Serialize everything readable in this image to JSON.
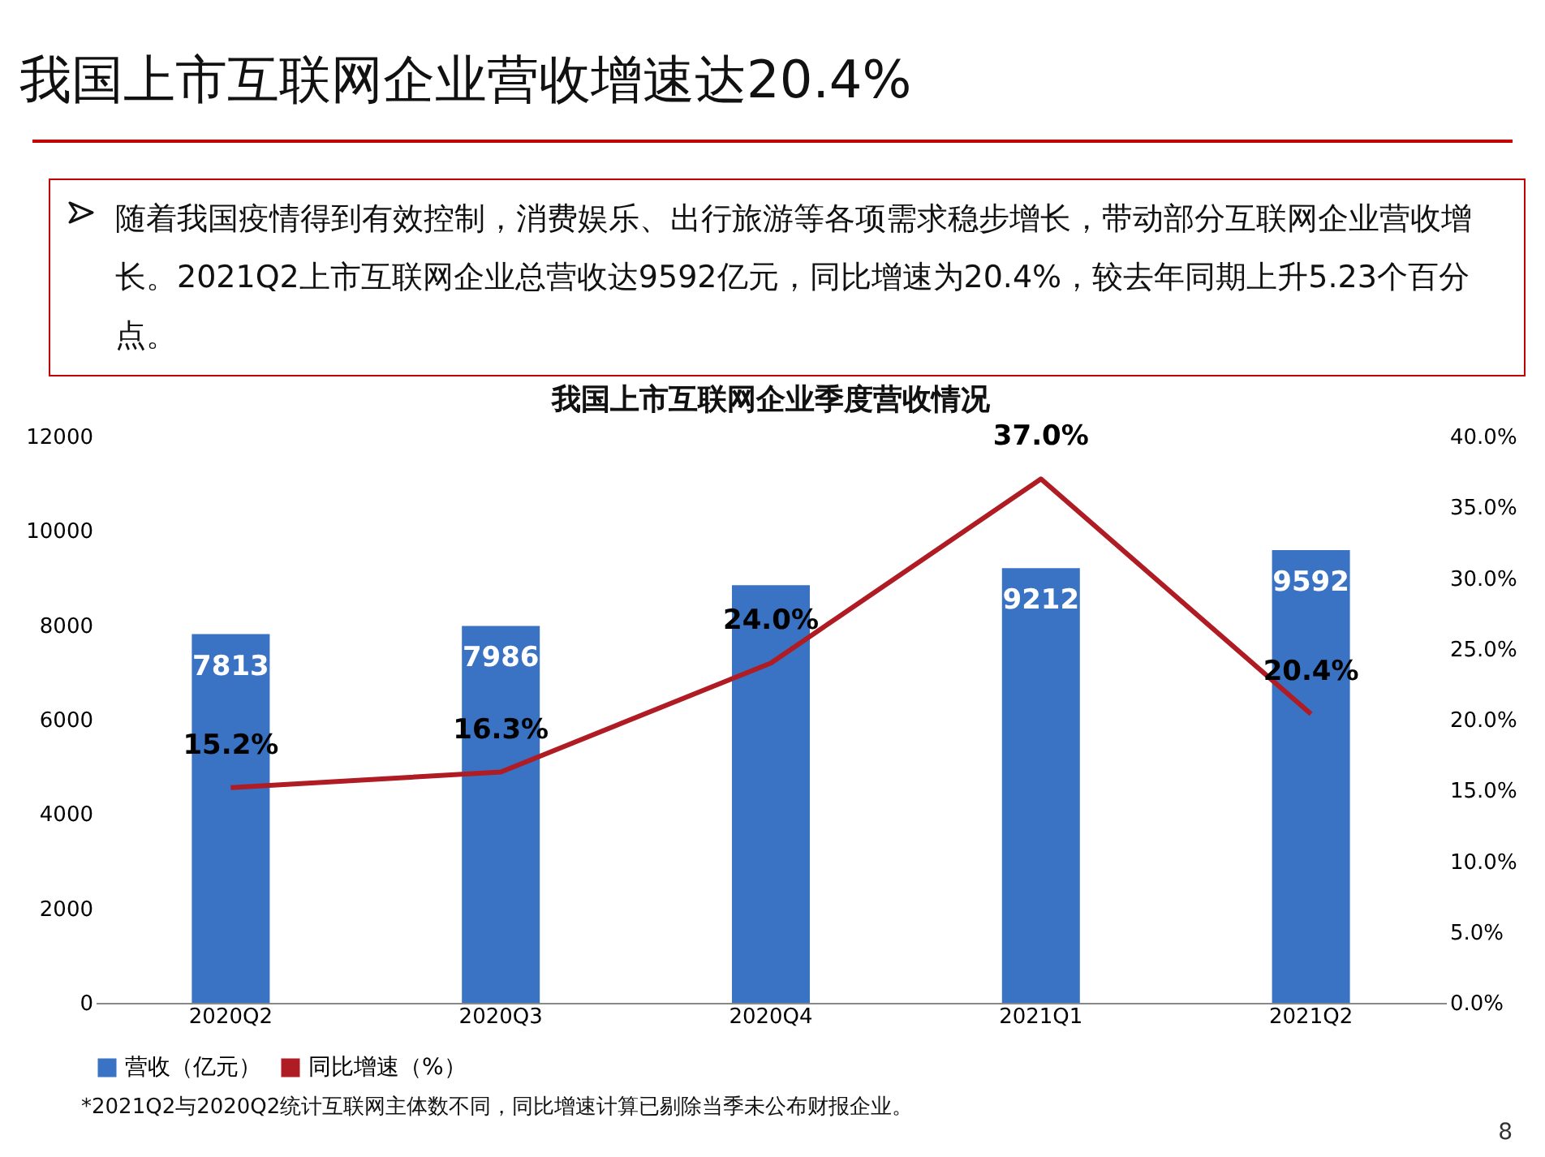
{
  "chart_data": {
    "type": "bar",
    "title": "我国上市互联网企业季度营收情况",
    "annotations": [
      "我国上市互联网企业营收增速达20.4%",
      "随着我国疫情得到有效控制，消费娱乐、出行旅游等各项需求稳步增长，带动部分互联网企业营收增长。2021Q2上市互联网企业总营收达9592亿元，同比增速为20.4%，较去年同期上升5.23个百分点。",
      "*2021Q2与2020Q2统计互联网主体数不同，同比增速计算已剔除当季未公布财报企业。",
      "8"
    ],
    "categories": [
      "2020Q2",
      "2020Q3",
      "2020Q4",
      "2021Q1",
      "2021Q2"
    ],
    "series": [
      {
        "name": "营收（亿元）",
        "color": "#3a72c4",
        "values": [
          7813,
          7986,
          8850,
          9212,
          9592
        ],
        "value_labels": [
          "7813",
          "7986",
          null,
          "9212",
          "9592"
        ]
      },
      {
        "name": "同比增速（%）",
        "type": "line",
        "axis": "y2",
        "color": "#b01c24",
        "values": [
          15.2,
          16.3,
          24.0,
          37.0,
          20.4
        ],
        "value_labels": [
          "15.2%",
          "16.3%",
          "24.0%",
          "37.0%",
          "20.4%"
        ]
      }
    ],
    "ylim": [
      0,
      12000
    ],
    "yticks": [
      0,
      2000,
      4000,
      6000,
      8000,
      10000,
      12000
    ],
    "y2lim": [
      0,
      40
    ],
    "y2ticks": [
      {
        "value": 0,
        "label": "0.0%"
      },
      {
        "value": 5,
        "label": "5.0%"
      },
      {
        "value": 10,
        "label": "10.0%"
      },
      {
        "value": 15,
        "label": "15.0%"
      },
      {
        "value": 20,
        "label": "20.0%"
      },
      {
        "value": 25,
        "label": "25.0%"
      },
      {
        "value": 30,
        "label": "30.0%"
      },
      {
        "value": 35,
        "label": "35.0%"
      },
      {
        "value": 40,
        "label": "40.0%"
      }
    ],
    "legend": "bottom",
    "marker": "none",
    "line_style": "solid",
    "grid": false
  }
}
